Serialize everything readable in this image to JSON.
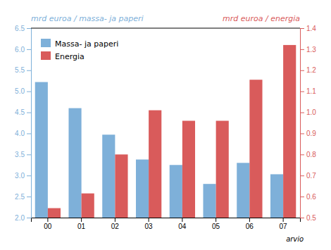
{
  "chart_data": {
    "type": "bar",
    "categories": [
      "00",
      "01",
      "02",
      "03",
      "04",
      "05",
      "06",
      "07"
    ],
    "series": [
      {
        "name": "Massa- ja paperi",
        "color": "#7EB0D9",
        "values": [
          5.22,
          4.6,
          3.97,
          3.38,
          3.25,
          2.8,
          3.3,
          3.03
        ]
      },
      {
        "name": "Energia",
        "color": "#D95B5B",
        "axis": "y2",
        "values": [
          0.545,
          0.615,
          0.8,
          1.01,
          0.96,
          0.96,
          1.155,
          1.32
        ]
      }
    ],
    "ylabel": "mrd euroa / massa- ja paperi",
    "y2label": "mrd euroa / energia",
    "ylim": [
      2.0,
      6.5
    ],
    "yticks": [
      {
        "value": 2.0,
        "label": "2.0"
      },
      2.5,
      {
        "value": 3.0,
        "label": "3.0"
      },
      3.5,
      {
        "value": 4.0,
        "label": "4.0"
      },
      4.5,
      {
        "value": 5.0,
        "label": "5.0"
      },
      5.5,
      {
        "value": 6.0,
        "label": "6.0"
      },
      6.5
    ],
    "y2lim": [
      0.5,
      1.4
    ],
    "y2ticks": [
      0.5,
      0.6,
      0.7,
      0.8,
      0.9,
      {
        "value": 1.0,
        "label": "1.0"
      },
      1.1,
      1.2,
      1.3,
      1.4
    ],
    "annotations": [
      {
        "text": "arvio",
        "x": "07"
      }
    ],
    "legend": "upper left",
    "grid": false
  }
}
